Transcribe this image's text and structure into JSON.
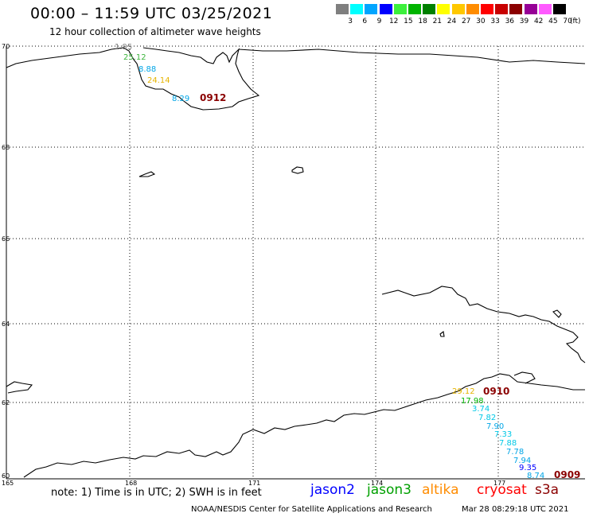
{
  "header": {
    "title": "00:00 – 11:59 UTC 03/25/2021",
    "subtitle": "12 hour collection of altimeter wave heights"
  },
  "legend": {
    "colors": [
      "#7f7f7f",
      "#00ffff",
      "#00a5ff",
      "#0000ff",
      "#3cf03c",
      "#00b400",
      "#008000",
      "#ffff00",
      "#ffc800",
      "#ff8c00",
      "#ff0000",
      "#c80000",
      "#8b0000",
      "#960096",
      "#ff5aff",
      "#000000"
    ],
    "ticks": [
      "3",
      "6",
      "9",
      "12",
      "15",
      "18",
      "21",
      "24",
      "27",
      "30",
      "33",
      "36",
      "39",
      "42",
      "45",
      "70"
    ],
    "unit": "(ft)"
  },
  "map": {
    "lat_labels": [
      "70",
      "68",
      "66",
      "64",
      "62",
      "60"
    ],
    "lon_labels": [
      "165",
      "168",
      "171",
      "174",
      "177"
    ],
    "observations": [
      {
        "text": "1.95",
        "color": "#7f7f7f"
      },
      {
        "text": "25.12",
        "color": "#3cb43c"
      },
      {
        "text": "8.88",
        "color": "#00a5e6"
      },
      {
        "text": "24.14",
        "color": "#e6b400"
      },
      {
        "text": "8.29",
        "color": "#00a5e6"
      },
      {
        "text": "0912",
        "color": "#8b0000"
      },
      {
        "text": "29.12",
        "color": "#e6b400"
      },
      {
        "text": "0910",
        "color": "#8b0000"
      },
      {
        "text": "17.98",
        "color": "#00b400"
      },
      {
        "text": "3.74",
        "color": "#00c8e6"
      },
      {
        "text": "7.82",
        "color": "#00c8e6"
      },
      {
        "text": "7.90",
        "color": "#00a5e6"
      },
      {
        "text": "7.33",
        "color": "#00c8e6"
      },
      {
        "text": "7.88",
        "color": "#00c8e6"
      },
      {
        "text": "7.78",
        "color": "#00a5e6"
      },
      {
        "text": "7.94",
        "color": "#00a5e6"
      },
      {
        "text": "9.35",
        "color": "#0000ff"
      },
      {
        "text": "8.74",
        "color": "#00a5e6"
      },
      {
        "text": "0909",
        "color": "#8b0000"
      }
    ]
  },
  "footer": {
    "note": "note: 1) Time is in UTC; 2) SWH is in feet",
    "satellites": [
      {
        "name": "jason2",
        "color": "#0000ff"
      },
      {
        "name": "jason3",
        "color": "#00a000"
      },
      {
        "name": "altika",
        "color": "#ff8c00"
      },
      {
        "name": "cryosat",
        "color": "#ff0000"
      },
      {
        "name": "s3a",
        "color": "#8b0000"
      }
    ],
    "credit": "NOAA/NESDIS Center for Satellite Applications and Research",
    "timestamp": "Mar 28 08:29:18 UTC 2021"
  }
}
